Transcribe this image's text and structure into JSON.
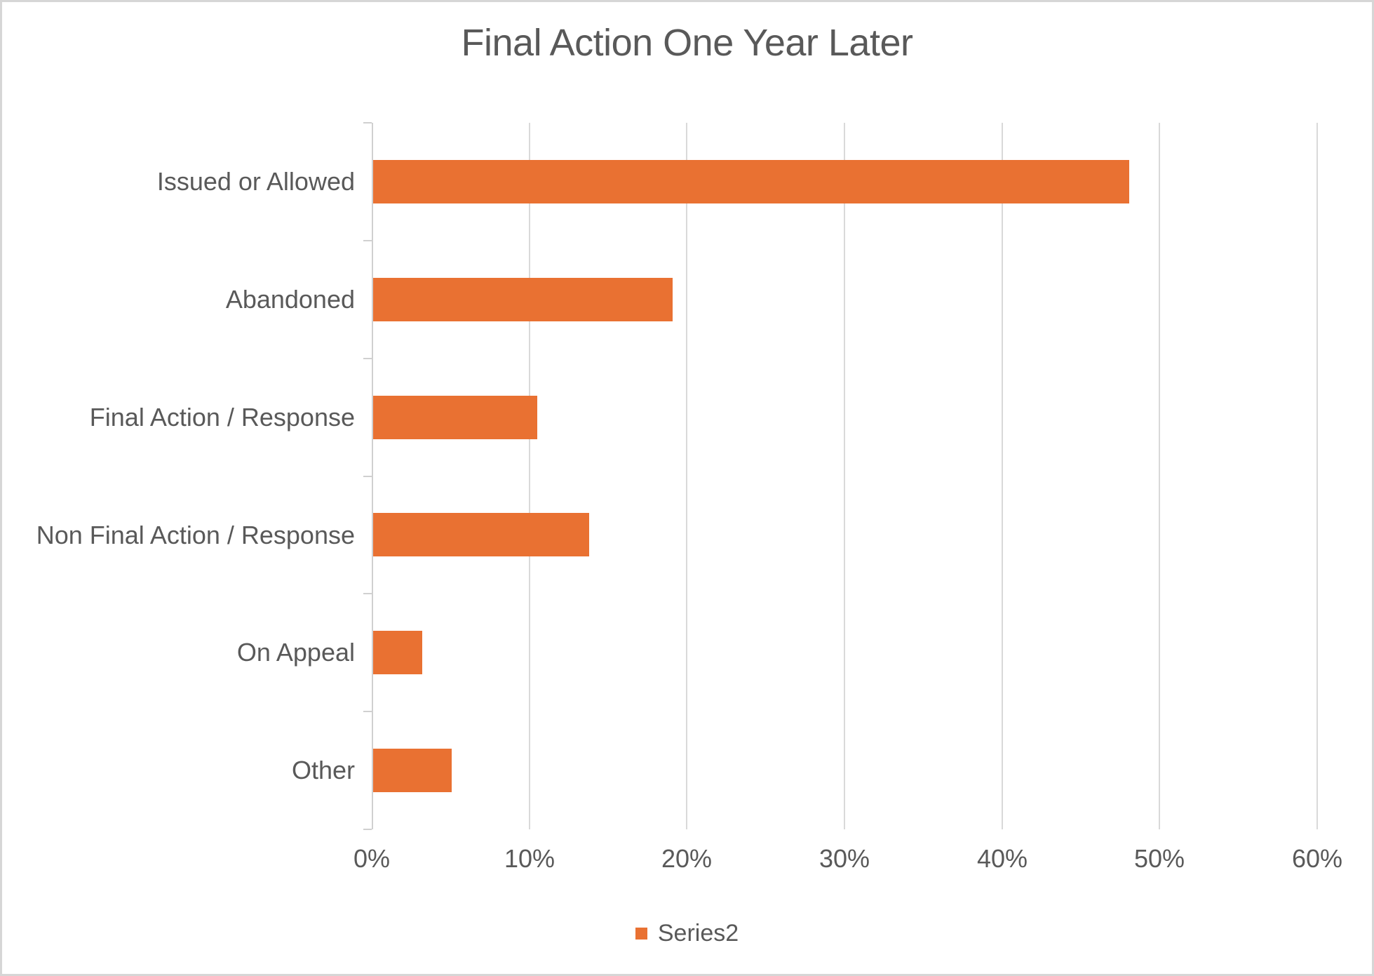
{
  "title": "Final Action One Year Later",
  "colors": {
    "bar": "#E97132",
    "text": "#595959",
    "gridline": "#D9D9D9",
    "axis": "#D0D0D0",
    "frame_border": "#D6D6D6"
  },
  "legend": {
    "label": "Series2"
  },
  "chart_data": {
    "type": "bar",
    "orientation": "horizontal",
    "title": "Final Action One Year Later",
    "categories": [
      "Issued or Allowed",
      "Abandoned",
      "Final Action / Response",
      "Non Final Action / Response",
      "On Appeal",
      "Other"
    ],
    "series": [
      {
        "name": "Series2",
        "color": "#E97132",
        "values": [
          48,
          19,
          10.4,
          13.7,
          3.1,
          5
        ]
      }
    ],
    "value_unit": "%",
    "xlabel": "",
    "ylabel": "",
    "xlim": [
      0,
      60
    ],
    "x_tick_values": [
      0,
      10,
      20,
      30,
      40,
      50,
      60
    ],
    "x_tick_labels": [
      "0%",
      "10%",
      "20%",
      "30%",
      "40%",
      "50%",
      "60%"
    ],
    "grid": true,
    "legend_position": "bottom"
  }
}
